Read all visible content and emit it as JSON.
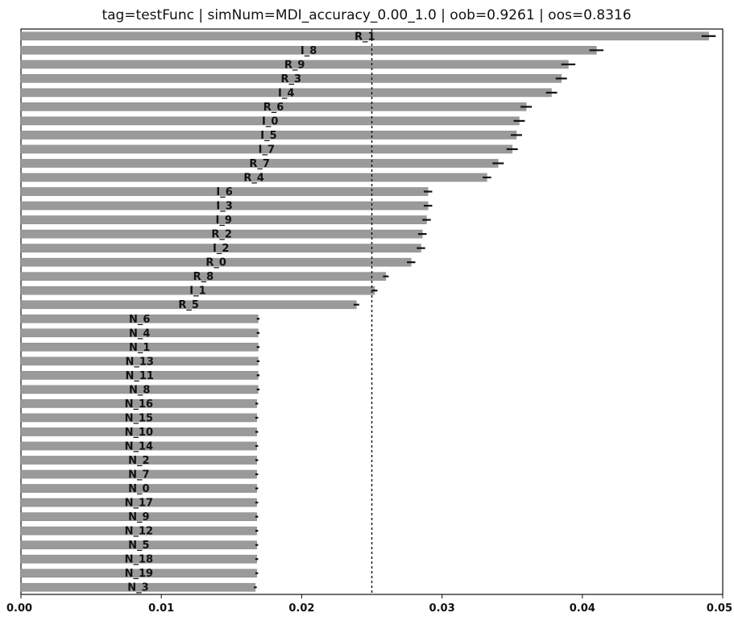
{
  "chart_data": {
    "type": "bar",
    "orientation": "horizontal",
    "title": "tag=testFunc | simNum=MDI_accuracy_0.00_1.0 | oob=0.9261 | oos=0.8316",
    "xlabel": "",
    "ylabel": "",
    "xlim": [
      0.0,
      0.05
    ],
    "x_ticks": [
      "0.00",
      "0.01",
      "0.02",
      "0.03",
      "0.04",
      "0.05"
    ],
    "x_tick_values": [
      0.0,
      0.01,
      0.02,
      0.03,
      0.04,
      0.05
    ],
    "reference_line": 0.025,
    "grid": false,
    "bar_color": "#9a9a9a",
    "categories": [
      "R_1",
      "I_8",
      "R_9",
      "R_3",
      "I_4",
      "R_6",
      "I_0",
      "I_5",
      "I_7",
      "R_7",
      "R_4",
      "I_6",
      "I_3",
      "I_9",
      "R_2",
      "I_2",
      "R_0",
      "R_8",
      "I_1",
      "R_5",
      "N_6",
      "N_4",
      "N_1",
      "N_13",
      "N_11",
      "N_8",
      "N_16",
      "N_15",
      "N_10",
      "N_14",
      "N_2",
      "N_7",
      "N_0",
      "N_17",
      "N_9",
      "N_12",
      "N_5",
      "N_18",
      "N_19",
      "N_3"
    ],
    "values": [
      0.049,
      0.041,
      0.039,
      0.0385,
      0.0378,
      0.036,
      0.0355,
      0.0353,
      0.035,
      0.034,
      0.0332,
      0.029,
      0.029,
      0.0289,
      0.0286,
      0.0285,
      0.0278,
      0.026,
      0.0252,
      0.0239,
      0.0169,
      0.0169,
      0.0169,
      0.0169,
      0.0169,
      0.0169,
      0.0168,
      0.0168,
      0.0168,
      0.0168,
      0.0168,
      0.0168,
      0.0168,
      0.0168,
      0.0168,
      0.0168,
      0.0168,
      0.0168,
      0.0168,
      0.0167
    ],
    "errors": [
      0.0005,
      0.0005,
      0.0005,
      0.0004,
      0.0004,
      0.0004,
      0.0004,
      0.0004,
      0.0004,
      0.0004,
      0.0003,
      0.0003,
      0.0003,
      0.0003,
      0.0003,
      0.0003,
      0.0003,
      0.0002,
      0.0002,
      0.0002,
      0.0001,
      0.0001,
      0.0001,
      0.0001,
      0.0001,
      0.0001,
      0.0001,
      0.0001,
      0.0001,
      0.0001,
      0.0001,
      0.0001,
      0.0001,
      0.0001,
      0.0001,
      0.0001,
      0.0001,
      0.0001,
      0.0001,
      0.0001
    ]
  }
}
